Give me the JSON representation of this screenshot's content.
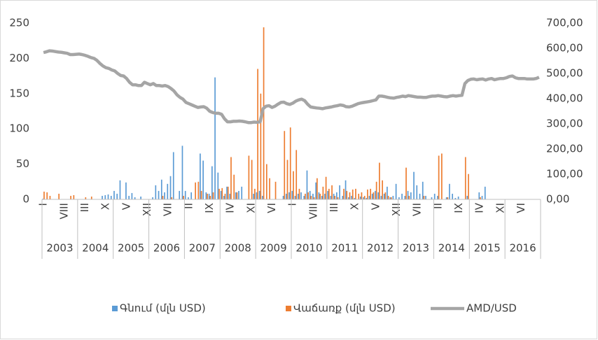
{
  "chart_data": {
    "type": "bar_line",
    "categories": [
      "I",
      null,
      null,
      null,
      null,
      null,
      null,
      "VIII",
      null,
      null,
      null,
      null,
      null,
      null,
      "III",
      null,
      null,
      null,
      null,
      null,
      null,
      "X",
      null,
      null,
      null,
      null,
      null,
      null,
      "V",
      null,
      null,
      null,
      null,
      null,
      null,
      "XII",
      null,
      null,
      null,
      null,
      null,
      null,
      "VII",
      null,
      null,
      null,
      null,
      null,
      null,
      "II",
      null,
      null,
      null,
      null,
      null,
      null,
      "IX",
      null,
      null,
      null,
      null,
      null,
      null,
      "IV",
      null,
      null,
      null,
      null,
      null,
      null,
      "XI",
      null,
      null,
      null,
      null,
      null,
      null,
      "VI",
      null,
      null,
      null,
      null,
      null,
      null,
      "I",
      null,
      null,
      null,
      null,
      null,
      null,
      "VIII",
      null,
      null,
      null,
      null,
      null,
      null,
      "III",
      null,
      null,
      null,
      null,
      null,
      null,
      "X",
      null,
      null,
      null,
      null,
      null,
      null,
      "V",
      null,
      null,
      null,
      null,
      null,
      null,
      "XII",
      null,
      null,
      null,
      null,
      null,
      null,
      "VII",
      null,
      null,
      null,
      null,
      null,
      null,
      "II",
      null,
      null,
      null,
      null,
      null,
      null,
      "IX",
      null,
      null,
      null,
      null,
      null,
      null,
      "IV",
      null,
      null,
      null,
      null,
      null,
      null,
      "XI",
      null,
      null,
      null,
      null,
      null,
      null,
      "VI",
      null,
      null,
      null,
      null,
      null,
      null
    ],
    "years": [
      "2003",
      "2004",
      "2005",
      "2006",
      "2007",
      "2008",
      "2009",
      "2010",
      "2011",
      "2012",
      "2013",
      "2014",
      "2015",
      "2016"
    ],
    "series": [
      {
        "name": "Գնում (մլն USD)",
        "color": "#5b9bd5",
        "kind": "bar",
        "values": [
          1,
          0,
          0,
          0,
          0,
          0,
          0,
          0,
          0,
          0,
          0,
          0,
          0,
          0,
          0,
          0,
          0,
          0,
          0,
          0,
          5,
          6,
          7,
          5,
          12,
          8,
          27,
          0,
          24,
          5,
          9,
          3,
          0,
          4,
          0,
          0,
          0,
          3,
          20,
          12,
          28,
          10,
          22,
          33,
          67,
          0,
          12,
          76,
          12,
          3,
          10,
          0,
          0,
          65,
          55,
          10,
          8,
          47,
          173,
          38,
          12,
          5,
          18,
          8,
          0,
          10,
          12,
          18,
          0,
          0,
          0,
          8,
          10,
          12,
          5,
          0,
          0,
          0,
          0,
          0,
          0,
          5,
          8,
          10,
          12,
          5,
          8,
          10,
          5,
          41,
          12,
          8,
          24,
          10,
          5,
          8,
          12,
          5,
          8,
          10,
          20,
          5,
          27,
          3,
          5,
          2,
          0,
          4,
          3,
          2,
          5,
          8,
          12,
          10,
          5,
          8,
          18,
          3,
          5,
          22,
          3,
          8,
          5,
          12,
          10,
          39,
          20,
          8,
          25,
          5,
          0,
          3,
          8,
          5,
          0,
          0,
          3,
          22,
          8,
          2,
          4,
          0,
          0,
          5,
          0,
          0,
          0,
          10,
          5,
          18,
          0,
          0,
          0,
          0,
          0,
          0,
          0,
          0,
          0,
          0,
          0,
          0,
          0,
          0,
          0,
          0,
          0,
          0
        ]
      },
      {
        "name": "Վաճառք (մլն USD)",
        "color": "#ed7d31",
        "kind": "bar",
        "values": [
          11,
          10,
          5,
          0,
          0,
          8,
          0,
          0,
          0,
          5,
          6,
          0,
          0,
          0,
          3,
          0,
          4,
          0,
          0,
          0,
          0,
          0,
          0,
          0,
          0,
          0,
          0,
          0,
          0,
          0,
          0,
          0,
          0,
          0,
          0,
          0,
          0,
          0,
          0,
          0,
          5,
          0,
          0,
          3,
          0,
          0,
          0,
          5,
          0,
          0,
          0,
          24,
          25,
          12,
          0,
          8,
          5,
          10,
          0,
          15,
          16,
          8,
          18,
          60,
          35,
          10,
          0,
          0,
          0,
          62,
          56,
          15,
          185,
          150,
          244,
          50,
          30,
          0,
          25,
          0,
          0,
          97,
          56,
          102,
          40,
          70,
          15,
          0,
          8,
          10,
          5,
          3,
          30,
          8,
          18,
          32,
          15,
          20,
          5,
          3,
          0,
          15,
          12,
          10,
          14,
          15,
          8,
          10,
          5,
          14,
          15,
          10,
          25,
          52,
          27,
          10,
          5,
          3,
          0,
          0,
          0,
          0,
          45,
          5,
          0,
          0,
          0,
          0,
          5,
          0,
          0,
          0,
          0,
          62,
          65,
          0,
          3,
          0,
          0,
          0,
          0,
          0,
          60,
          36,
          0,
          0,
          0,
          3,
          0,
          0,
          0,
          0,
          0,
          0,
          0,
          0,
          0,
          0,
          0,
          0,
          0,
          0,
          0,
          0,
          0,
          0,
          0,
          0
        ]
      },
      {
        "name": "AMD/USD",
        "color": "#a5a5a5",
        "kind": "line",
        "axis": "y2",
        "values": [
          583,
          586,
          590,
          589,
          587,
          585,
          584,
          582,
          580,
          575,
          575,
          576,
          577,
          575,
          572,
          568,
          563,
          560,
          552,
          540,
          530,
          523,
          520,
          514,
          510,
          500,
          492,
          490,
          480,
          465,
          455,
          455,
          452,
          452,
          465,
          460,
          455,
          460,
          452,
          452,
          450,
          452,
          448,
          440,
          430,
          415,
          405,
          398,
          385,
          380,
          375,
          370,
          365,
          367,
          368,
          362,
          350,
          345,
          342,
          342,
          338,
          320,
          308,
          308,
          310,
          310,
          311,
          310,
          308,
          305,
          305,
          307,
          306,
          308,
          360,
          370,
          372,
          365,
          370,
          378,
          385,
          386,
          380,
          377,
          382,
          390,
          395,
          398,
          392,
          378,
          367,
          365,
          363,
          362,
          360,
          363,
          365,
          367,
          370,
          372,
          375,
          373,
          368,
          367,
          370,
          375,
          380,
          383,
          385,
          387,
          389,
          392,
          395,
          410,
          410,
          408,
          405,
          403,
          402,
          405,
          407,
          410,
          408,
          412,
          410,
          408,
          406,
          406,
          405,
          405,
          408,
          410,
          410,
          412,
          410,
          408,
          407,
          410,
          412,
          410,
          412,
          413,
          460,
          472,
          477,
          478,
          475,
          477,
          478,
          474,
          478,
          480,
          475,
          478,
          480,
          480,
          483,
          488,
          490,
          483,
          480,
          480,
          480,
          478,
          478,
          478,
          480,
          485
        ]
      }
    ],
    "ylim": [
      0,
      250
    ],
    "yticks": [
      0,
      50,
      100,
      150,
      200,
      250
    ],
    "y2lim": [
      0,
      700
    ],
    "y2ticks": [
      {
        "value": 0,
        "label": "0,00"
      },
      {
        "value": 100,
        "label": "100,00"
      },
      {
        "value": 200,
        "label": "200,00"
      },
      {
        "value": 300,
        "label": "300,00"
      },
      {
        "value": 400,
        "label": "400,00"
      },
      {
        "value": 500,
        "label": "500,00"
      },
      {
        "value": 600,
        "label": "600,00"
      },
      {
        "value": 700,
        "label": "700,00"
      }
    ],
    "legend": "bottom",
    "grid": false
  }
}
